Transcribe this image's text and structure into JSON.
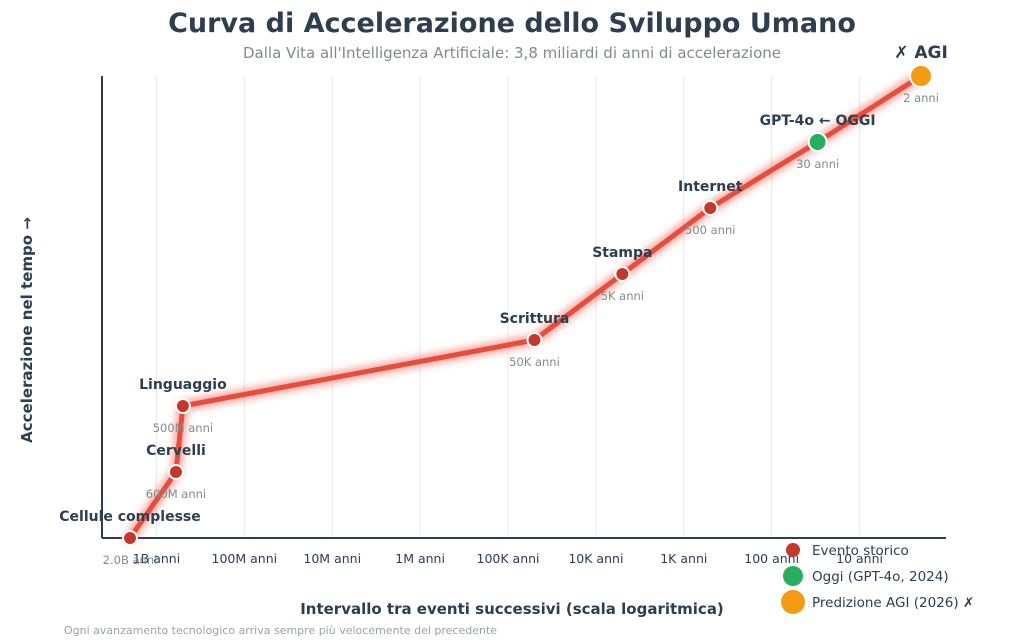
{
  "chart_data": {
    "type": "line",
    "title": "Curva di Accelerazione dello Sviluppo Umano",
    "subtitle": "Dalla Vita all'Intelligenza Artificiale: 3,8 miliardi di anni di accelerazione",
    "xlabel": "Intervallo tra eventi successivi (scala logaritmica)",
    "ylabel": "Accelerazione nel tempo →",
    "x_scale": "log-reversed",
    "x_ticks": [
      {
        "value": 1000000000,
        "label": "1B anni"
      },
      {
        "value": 100000000,
        "label": "100M anni"
      },
      {
        "value": 10000000,
        "label": "10M anni"
      },
      {
        "value": 1000000,
        "label": "1M anni"
      },
      {
        "value": 100000,
        "label": "100K anni"
      },
      {
        "value": 10000,
        "label": "10K anni"
      },
      {
        "value": 1000,
        "label": "1K anni"
      },
      {
        "value": 100,
        "label": "100 anni"
      },
      {
        "value": 10,
        "label": "10 anni"
      }
    ],
    "points": [
      {
        "label": "Cellule complesse",
        "interval": "2.0B anni",
        "x": 2000000000,
        "step": 0,
        "kind": "historic"
      },
      {
        "label": "Cervelli",
        "interval": "600M anni",
        "x": 600000000,
        "step": 1,
        "kind": "historic"
      },
      {
        "label": "Linguaggio",
        "interval": "500M anni",
        "x": 500000000,
        "step": 2,
        "kind": "historic"
      },
      {
        "label": "Scrittura",
        "interval": "50K anni",
        "x": 50000,
        "step": 3,
        "kind": "historic"
      },
      {
        "label": "Stampa",
        "interval": "5K anni",
        "x": 5000,
        "step": 4,
        "kind": "historic"
      },
      {
        "label": "Internet",
        "interval": "500 anni",
        "x": 500,
        "step": 5,
        "kind": "historic"
      },
      {
        "label": "GPT-4o ← OGGI",
        "interval": "30 anni",
        "x": 30,
        "step": 6,
        "kind": "today"
      },
      {
        "label": "✗ AGI",
        "interval": "2 anni",
        "x": 2,
        "step": 7,
        "kind": "prediction"
      }
    ],
    "legend": [
      {
        "label": "Evento storico",
        "kind": "historic"
      },
      {
        "label": "Oggi (GPT-4o, 2024)",
        "kind": "today"
      },
      {
        "label": "Predizione AGI (2026) ✗",
        "kind": "prediction"
      }
    ],
    "legend_position": "bottom-right",
    "grid": true,
    "colors": {
      "line": "#e74c3c",
      "historic": "#c0392b",
      "today": "#27ae60",
      "prediction": "#f39c12"
    }
  },
  "footnote": "Ogni avanzamento tecnologico arriva sempre più velocemente del precedente"
}
